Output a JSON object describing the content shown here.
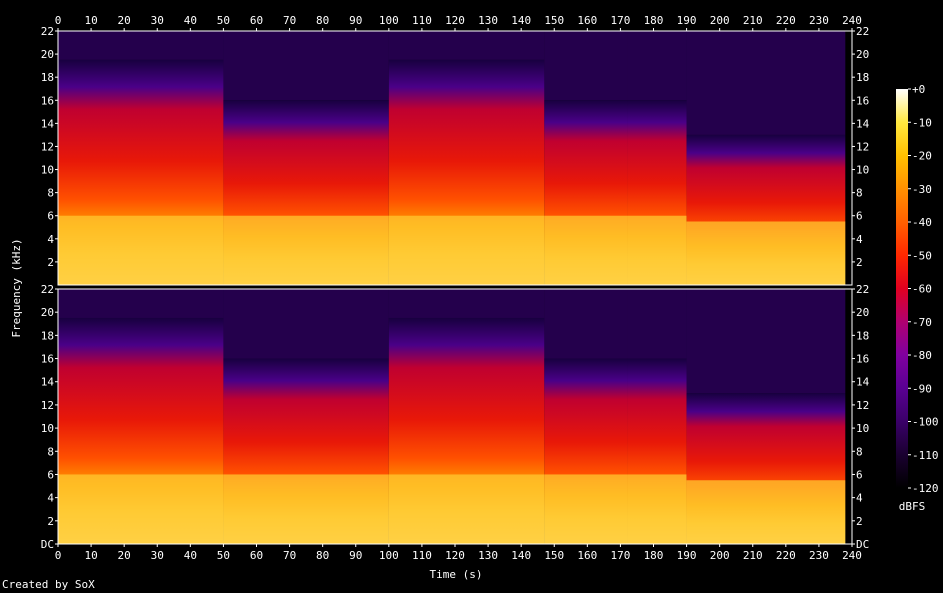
{
  "credit": "Created by SoX",
  "chart_data": {
    "type": "heatmap",
    "title": "",
    "xlabel": "Time (s)",
    "ylabel": "Frequency (kHz)",
    "xlim": [
      0,
      240
    ],
    "ylim": [
      0,
      22
    ],
    "x_ticks": [
      "0",
      "10",
      "20",
      "30",
      "40",
      "50",
      "60",
      "70",
      "80",
      "90",
      "100",
      "110",
      "120",
      "130",
      "140",
      "150",
      "160",
      "170",
      "180",
      "190",
      "200",
      "210",
      "220",
      "230",
      "240"
    ],
    "y_ticks": [
      "DC",
      "2",
      "4",
      "6",
      "8",
      "10",
      "12",
      "14",
      "16",
      "18",
      "20",
      "22"
    ],
    "channels": 2,
    "colorbar": {
      "label": "dBFS",
      "range": [
        -120,
        0
      ],
      "ticks": [
        "+0",
        "-10",
        "-20",
        "-30",
        "-40",
        "-50",
        "-60",
        "-70",
        "-80",
        "-90",
        "-100",
        "-110",
        "-120"
      ],
      "colors": [
        "#000000",
        "#1a0030",
        "#3a0068",
        "#5a0092",
        "#8000a0",
        "#b00070",
        "#e00020",
        "#ff2800",
        "#ff6000",
        "#ff9000",
        "#ffc000",
        "#ffe840",
        "#ffffff"
      ]
    },
    "segments": [
      {
        "t0": 0,
        "t1": 50,
        "top_khz": 19.5,
        "hot_khz": 6.0
      },
      {
        "t0": 50,
        "t1": 100,
        "top_khz": 16.0,
        "hot_khz": 6.0
      },
      {
        "t0": 100,
        "t1": 147,
        "top_khz": 19.5,
        "hot_khz": 6.0
      },
      {
        "t0": 147,
        "t1": 172,
        "top_khz": 16.0,
        "hot_khz": 6.0
      },
      {
        "t0": 172,
        "t1": 190,
        "top_khz": 16.0,
        "hot_khz": 6.0
      },
      {
        "t0": 190,
        "t1": 238,
        "top_khz": 13.0,
        "hot_khz": 5.5
      }
    ]
  }
}
